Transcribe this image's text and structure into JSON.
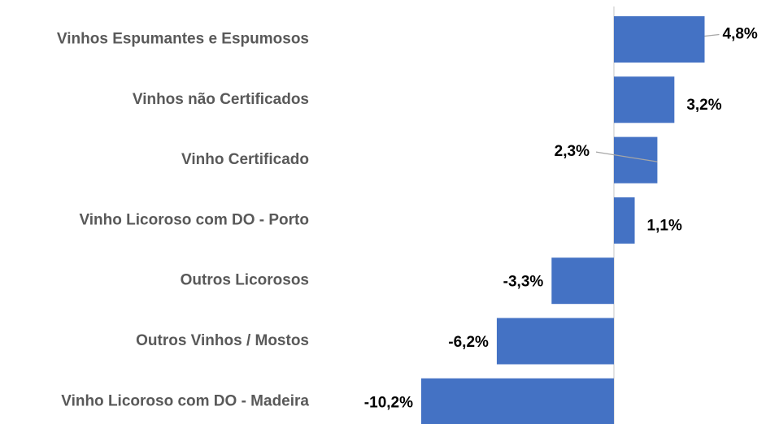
{
  "chart_data": {
    "type": "bar",
    "orientation": "horizontal",
    "categories": [
      "Vinhos Espumantes e Espumosos",
      "Vinhos não Certificados",
      "Vinho Certificado",
      "Vinho Licoroso com DO - Porto",
      "Outros Licorosos",
      "Outros Vinhos / Mostos",
      "Vinho Licoroso com DO - Madeira"
    ],
    "values": [
      4.8,
      3.2,
      2.3,
      1.1,
      -3.3,
      -6.2,
      -10.2
    ],
    "value_labels": [
      "4,8%",
      "3,2%",
      "2,3%",
      "1,1%",
      "-3,3%",
      "-6,2%",
      "-10,2%"
    ],
    "color": "#4472c4"
  }
}
